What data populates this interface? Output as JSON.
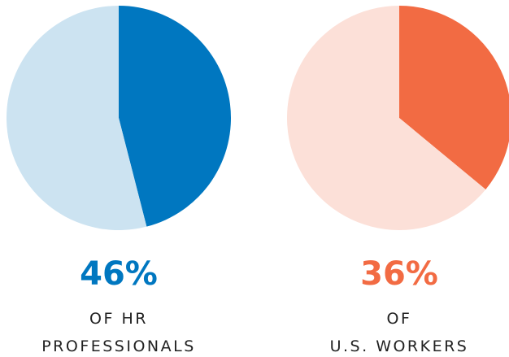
{
  "chart_data": [
    {
      "type": "pie",
      "categories": [
        null,
        null
      ],
      "values": [
        46,
        54
      ],
      "value_labels": [
        "46%",
        null
      ],
      "colors": [
        "#0077c0",
        "#cce3f1"
      ],
      "caption": [
        "OF HR",
        "PROFESSIONALS"
      ]
    },
    {
      "type": "pie",
      "categories": [
        null,
        null
      ],
      "values": [
        36,
        64
      ],
      "value_labels": [
        "36%",
        null
      ],
      "colors": [
        "#f26b43",
        "#fce0d8"
      ],
      "caption": [
        "OF",
        "U.S. WORKERS"
      ]
    }
  ]
}
